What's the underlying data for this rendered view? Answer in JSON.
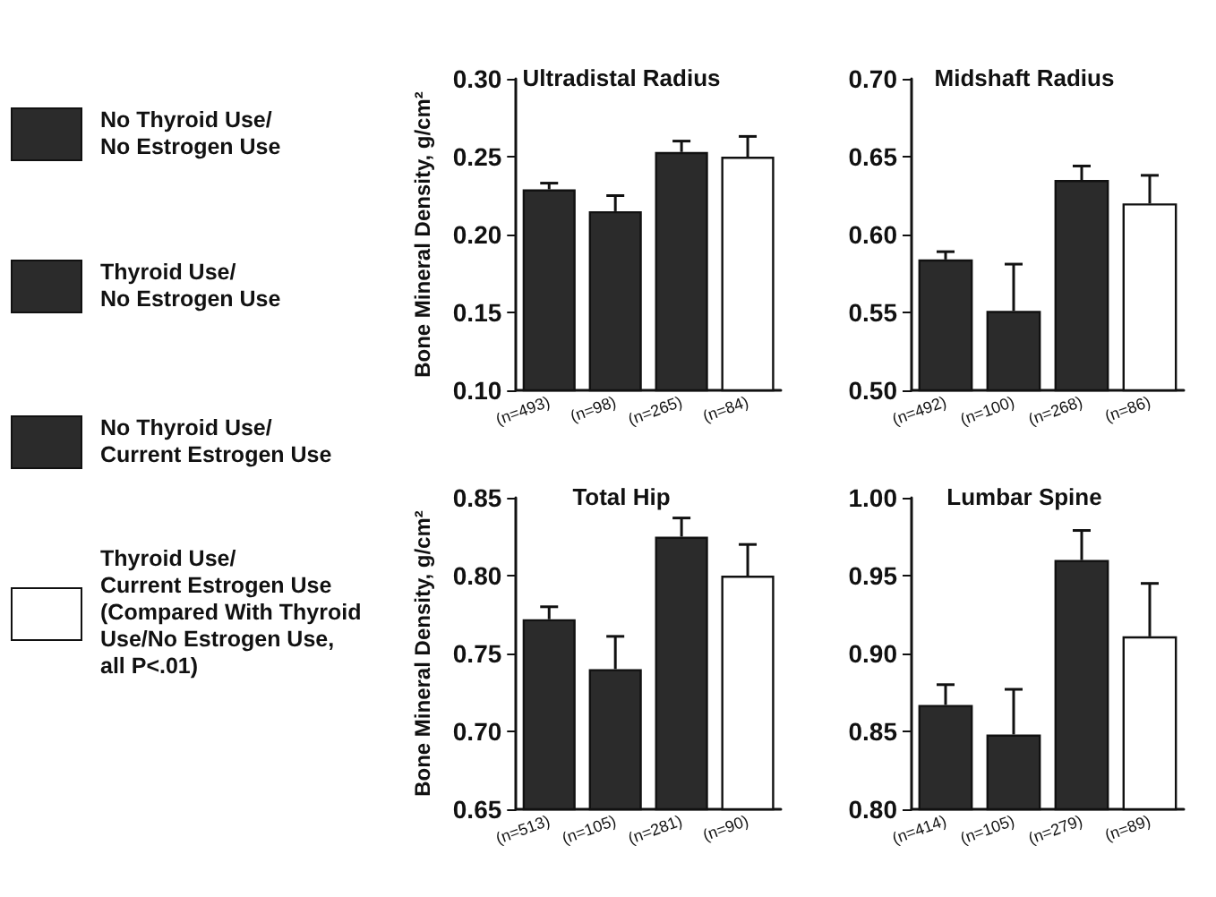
{
  "chart_data": [
    {
      "type": "bar",
      "title": "Ultradistal Radius",
      "ylabel": "Bone Mineral Density, g/cm²",
      "categories": [
        "(n=493)",
        "(n=98)",
        "(n=265)",
        "(n=84)"
      ],
      "stacked": true,
      "legend": "left",
      "grid": false,
      "ylim": [
        0.1,
        0.3
      ],
      "yticks": [
        {
          "value": 0.1,
          "label": "0.10"
        },
        {
          "value": 0.15,
          "label": "0.15"
        },
        {
          "value": 0.2,
          "label": "0.20"
        },
        {
          "value": 0.25,
          "label": "0.25"
        },
        {
          "value": 0.3,
          "label": "0.30"
        }
      ],
      "series": [
        {
          "name": "No Thyroid Use/\nNo Estrogen Use",
          "color": "#2b2b2b",
          "values": [
            0.229,
            null,
            null,
            null
          ],
          "errors": [
            [
              0.229,
              0.233
            ],
            null,
            null,
            null
          ]
        },
        {
          "name": "Thyroid Use/\nNo Estrogen Use",
          "color": "#2b2b2b",
          "values": [
            null,
            0.215,
            null,
            null
          ],
          "errors": [
            null,
            [
              0.215,
              0.225
            ],
            null,
            null
          ]
        },
        {
          "name": "No Thyroid Use/\nCurrent Estrogen Use",
          "color": "#2b2b2b",
          "values": [
            null,
            null,
            0.253,
            null
          ],
          "errors": [
            null,
            null,
            [
              0.253,
              0.26
            ],
            null
          ]
        },
        {
          "name": "Thyroid Use/\nCurrent Estrogen Use\n(Compared With Thyroid\nUse/No Estrogen Use,\nall P<.01)",
          "color": "#ffffff",
          "values": [
            null,
            null,
            null,
            0.25
          ],
          "errors": [
            null,
            null,
            null,
            [
              0.25,
              0.263
            ]
          ]
        }
      ]
    },
    {
      "type": "bar",
      "title": "Midshaft Radius",
      "categories": [
        "(n=492)",
        "(n=100)",
        "(n=268)",
        "(n=86)"
      ],
      "stacked": true,
      "grid": false,
      "ylim": [
        0.5,
        0.7
      ],
      "yticks": [
        {
          "value": 0.5,
          "label": "0.50"
        },
        {
          "value": 0.55,
          "label": "0.55"
        },
        {
          "value": 0.6,
          "label": "0.60"
        },
        {
          "value": 0.65,
          "label": "0.65"
        },
        {
          "value": 0.7,
          "label": "0.70"
        }
      ],
      "series": [
        {
          "color": "#2b2b2b",
          "values": [
            0.584,
            null,
            null,
            null
          ],
          "errors": [
            [
              0.584,
              0.589
            ],
            null,
            null,
            null
          ]
        },
        {
          "color": "#2b2b2b",
          "values": [
            null,
            0.551,
            null,
            null
          ],
          "errors": [
            null,
            [
              0.551,
              0.581
            ],
            null,
            null
          ]
        },
        {
          "color": "#2b2b2b",
          "values": [
            null,
            null,
            0.635,
            null
          ],
          "errors": [
            null,
            null,
            [
              0.635,
              0.644
            ],
            null
          ]
        },
        {
          "color": "#ffffff",
          "values": [
            null,
            null,
            null,
            0.62
          ],
          "errors": [
            null,
            null,
            null,
            [
              0.62,
              0.638
            ]
          ]
        }
      ]
    },
    {
      "type": "bar",
      "title": "Total Hip",
      "ylabel": "Bone Mineral Density, g/cm²",
      "categories": [
        "(n=513)",
        "(n=105)",
        "(n=281)",
        "(n=90)"
      ],
      "stacked": true,
      "grid": false,
      "ylim": [
        0.65,
        0.85
      ],
      "yticks": [
        {
          "value": 0.65,
          "label": "0.65"
        },
        {
          "value": 0.7,
          "label": "0.70"
        },
        {
          "value": 0.75,
          "label": "0.75"
        },
        {
          "value": 0.8,
          "label": "0.80"
        },
        {
          "value": 0.85,
          "label": "0.85"
        }
      ],
      "series": [
        {
          "color": "#2b2b2b",
          "values": [
            0.772,
            null,
            null,
            null
          ],
          "errors": [
            [
              0.772,
              0.78
            ],
            null,
            null,
            null
          ]
        },
        {
          "color": "#2b2b2b",
          "values": [
            null,
            0.74,
            null,
            null
          ],
          "errors": [
            null,
            [
              0.74,
              0.761
            ],
            null,
            null
          ]
        },
        {
          "color": "#2b2b2b",
          "values": [
            null,
            null,
            0.825,
            null
          ],
          "errors": [
            null,
            null,
            [
              0.825,
              0.837
            ],
            null
          ]
        },
        {
          "color": "#ffffff",
          "values": [
            null,
            null,
            null,
            0.8
          ],
          "errors": [
            null,
            null,
            null,
            [
              0.8,
              0.82
            ]
          ]
        }
      ]
    },
    {
      "type": "bar",
      "title": "Lumbar Spine",
      "categories": [
        "(n=414)",
        "(n=105)",
        "(n=279)",
        "(n=89)"
      ],
      "stacked": true,
      "grid": false,
      "ylim": [
        0.8,
        1.0
      ],
      "yticks": [
        {
          "value": 0.8,
          "label": "0.80"
        },
        {
          "value": 0.85,
          "label": "0.85"
        },
        {
          "value": 0.9,
          "label": "0.90"
        },
        {
          "value": 0.95,
          "label": "0.95"
        },
        {
          "value": 1.0,
          "label": "1.00"
        }
      ],
      "series": [
        {
          "color": "#2b2b2b",
          "values": [
            0.867,
            null,
            null,
            null
          ],
          "errors": [
            [
              0.867,
              0.88
            ],
            null,
            null,
            null
          ]
        },
        {
          "color": "#2b2b2b",
          "values": [
            null,
            0.848,
            null,
            null
          ],
          "errors": [
            null,
            [
              0.848,
              0.877
            ],
            null,
            null
          ]
        },
        {
          "color": "#2b2b2b",
          "values": [
            null,
            null,
            0.96,
            null
          ],
          "errors": [
            null,
            null,
            [
              0.96,
              0.979
            ],
            null
          ]
        },
        {
          "color": "#ffffff",
          "values": [
            null,
            null,
            null,
            0.911
          ],
          "errors": [
            null,
            null,
            null,
            [
              0.911,
              0.945
            ]
          ]
        }
      ]
    }
  ]
}
